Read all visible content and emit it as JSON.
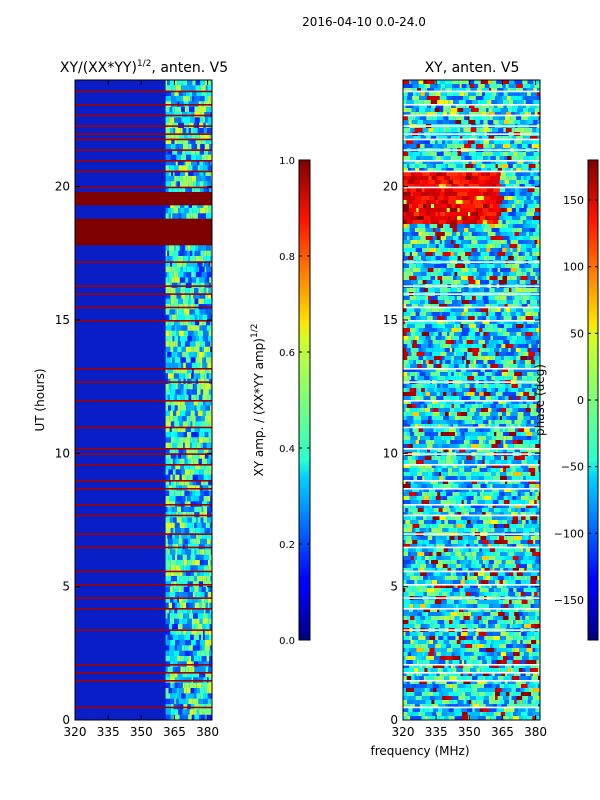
{
  "figure": {
    "suptitle": "2016-04-10 0.0-24.0",
    "shared_xlabel": "frequency (MHz)"
  },
  "colormap": "jet",
  "chart_data": [
    {
      "type": "heatmap",
      "title": "XY/(XX*YY)",
      "title_exponent": "1/2",
      "title_suffix": ", anten. V5",
      "xlabel": "frequency (MHz)",
      "ylabel": "UT (hours)",
      "x_ticks": [
        320,
        335,
        350,
        365,
        380
      ],
      "y_ticks": [
        0,
        5,
        10,
        15,
        20
      ],
      "xlim": [
        320,
        382
      ],
      "ylim": [
        0,
        24
      ],
      "active_band_mhz": [
        361,
        382
      ],
      "saturated_hours": [
        [
          17.8,
          18.8
        ],
        [
          19.3,
          19.8
        ]
      ],
      "flag_lines_ut": [
        0.5,
        1.5,
        1.8,
        2.1,
        3.4,
        4.2,
        4.6,
        5.1,
        5.6,
        6.5,
        7.0,
        7.7,
        8.1,
        8.7,
        9.0,
        9.6,
        10.0,
        10.2,
        11.0,
        12.0,
        12.7,
        13.2,
        15.0,
        15.5,
        16.0,
        16.3,
        17.2,
        20.0,
        20.6,
        21.0,
        21.4,
        21.8,
        22.0,
        22.3,
        22.7,
        23.1,
        23.6
      ],
      "colorbar": {
        "label": "XY amp. / (XX*YY amp)",
        "label_exponent": "1/2",
        "vmin": 0.0,
        "vmax": 1.0,
        "ticks": [
          "0.0",
          "0.2",
          "0.4",
          "0.6",
          "0.8",
          "1.0"
        ],
        "tick_values": [
          0.0,
          0.2,
          0.4,
          0.6,
          0.8,
          1.0
        ]
      }
    },
    {
      "type": "heatmap",
      "title": "XY, anten. V5",
      "xlabel": "frequency (MHz)",
      "ylabel": "",
      "x_ticks": [
        320,
        335,
        350,
        365,
        380
      ],
      "y_ticks": [
        0,
        5,
        10,
        15,
        20
      ],
      "xlim": [
        320,
        382
      ],
      "ylim": [
        0,
        24
      ],
      "colorbar": {
        "label": "phase (deg)",
        "vmin": -180,
        "vmax": 180,
        "ticks": [
          "150",
          "100",
          "50",
          "0",
          "−50",
          "−100",
          "−150"
        ],
        "tick_values": [
          150,
          100,
          50,
          0,
          -50,
          -100,
          -150
        ]
      }
    }
  ]
}
